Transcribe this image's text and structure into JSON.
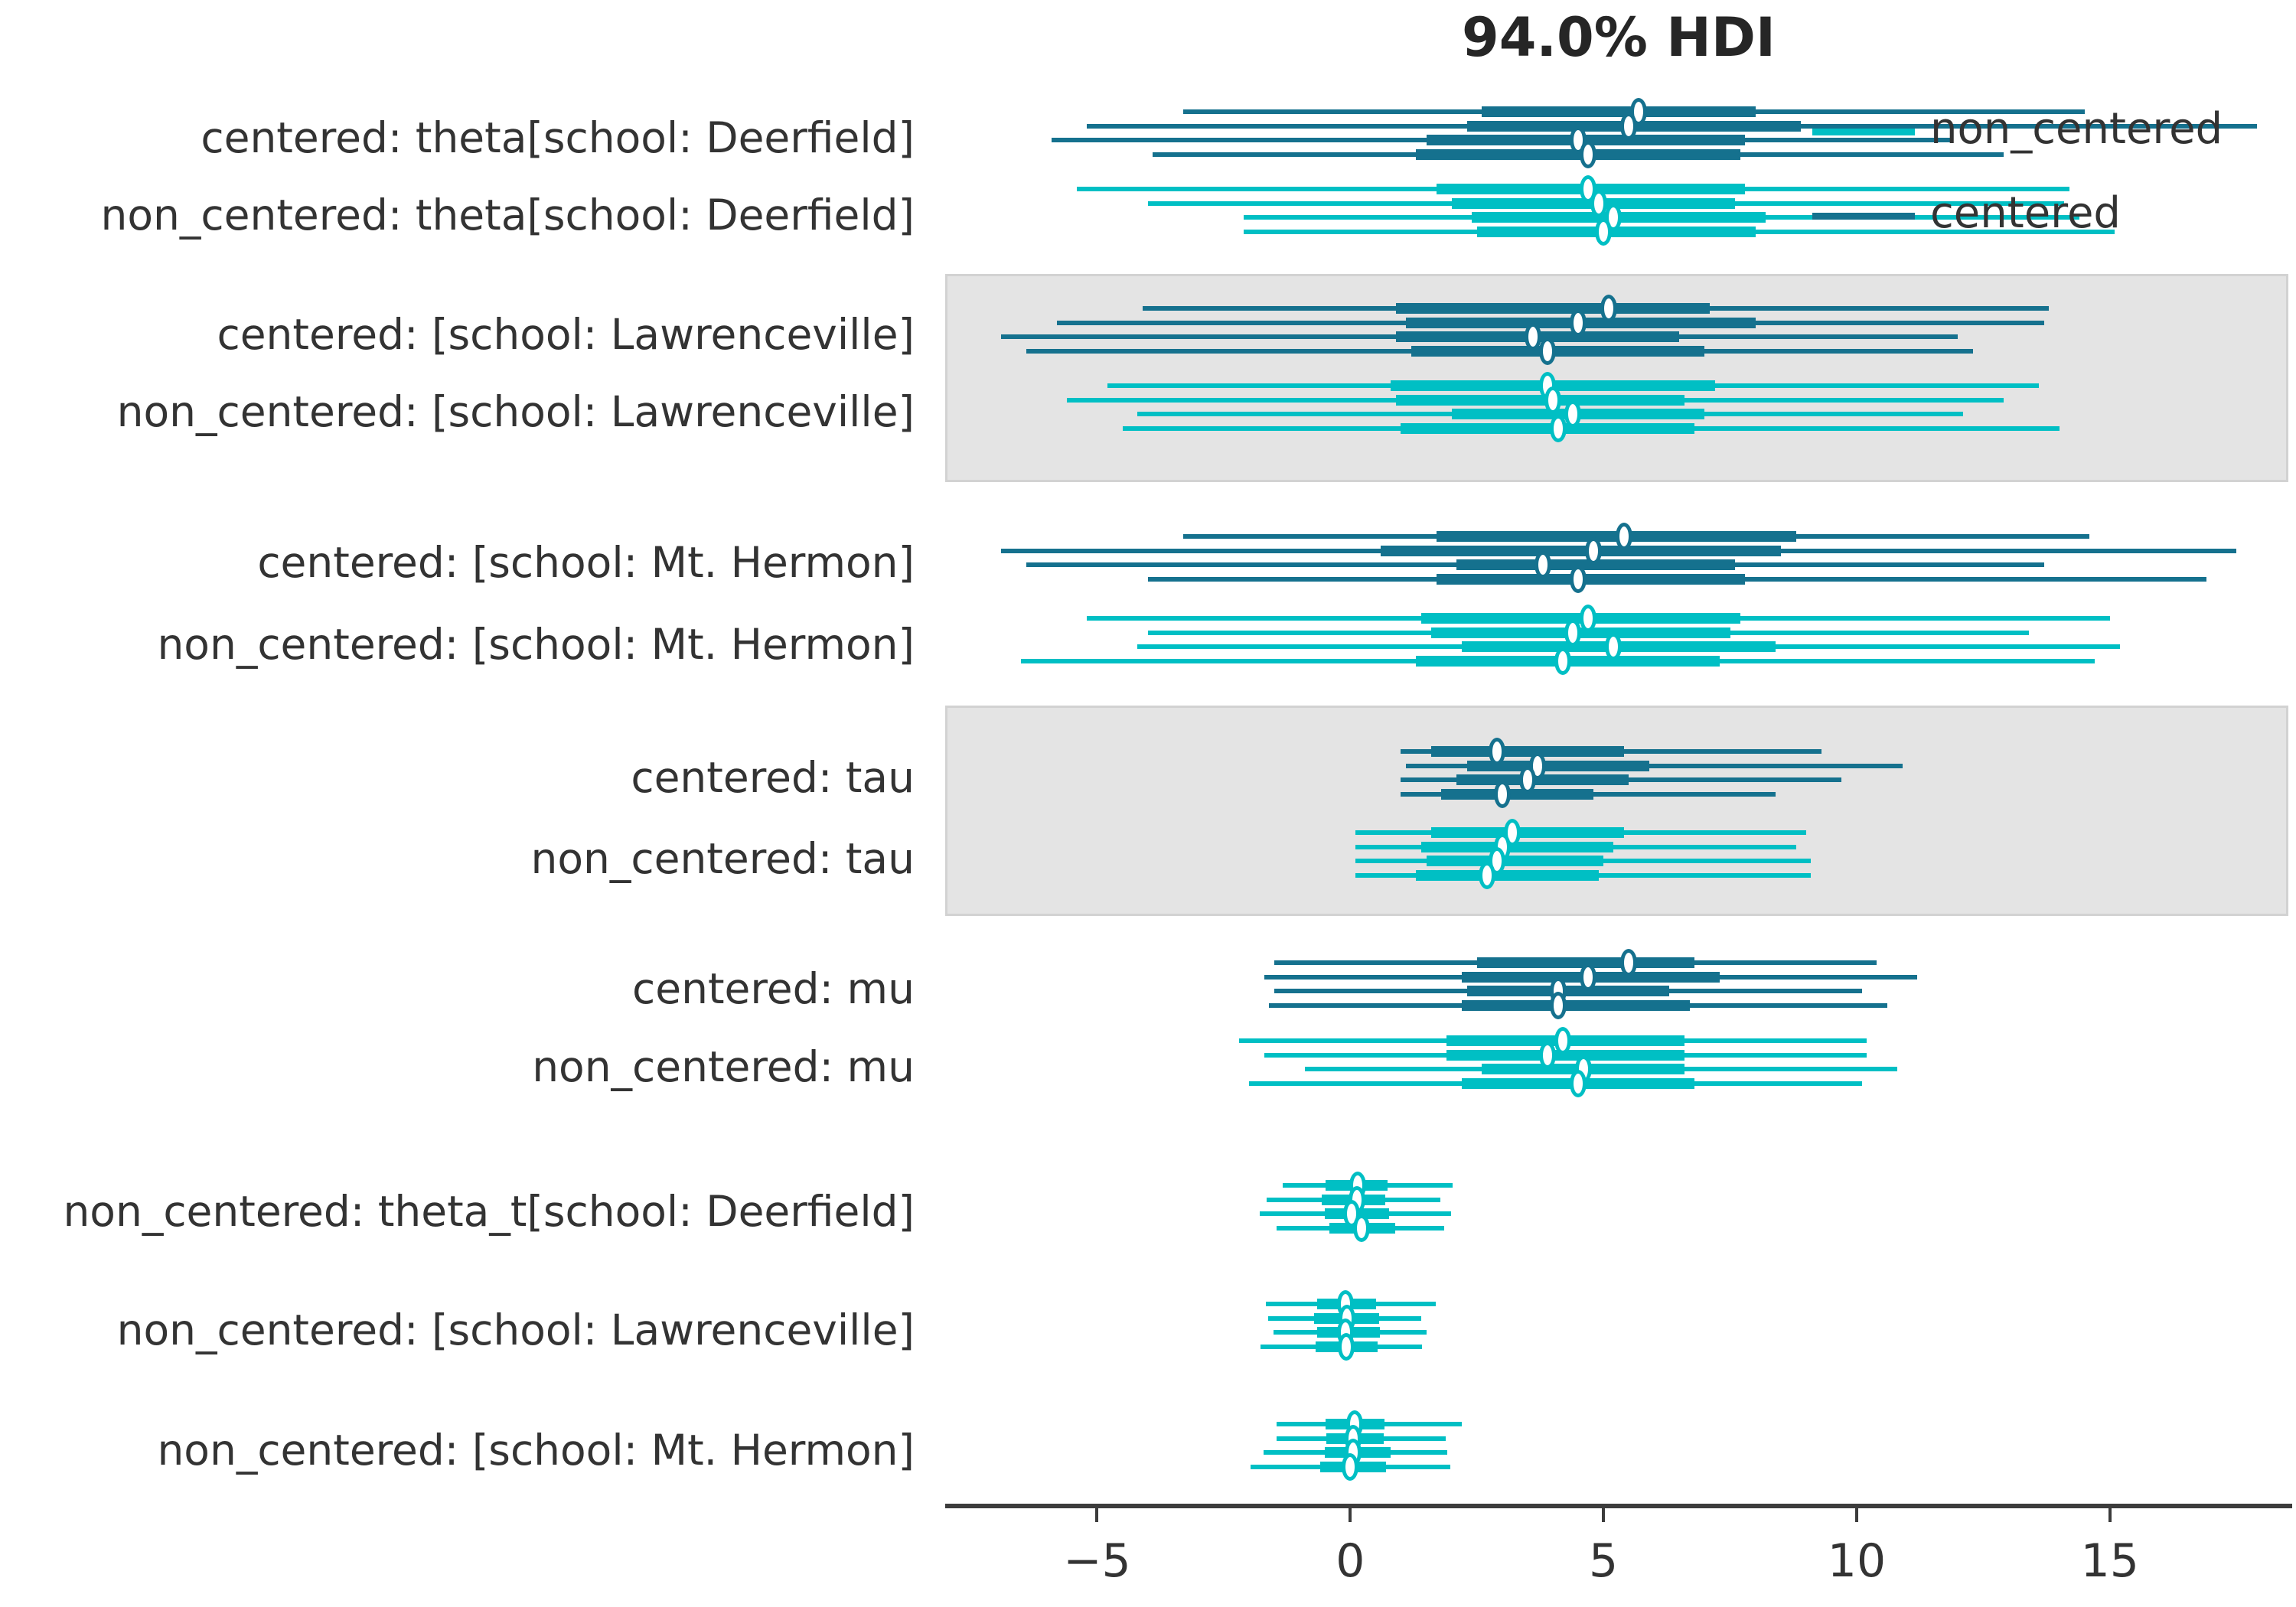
{
  "chart_data": {
    "type": "forest",
    "title": "94.0% HDI",
    "hdi_prob": "94.0%",
    "legend": [
      {
        "name": "non_centered",
        "color": "#00bfc4"
      },
      {
        "name": "centered",
        "color": "#15718e"
      }
    ],
    "colors": {
      "centered": "#15718e",
      "non_centered": "#00bfc4",
      "band": "#e4e4e4",
      "axis": "#3c3c3c",
      "text": "#333333"
    },
    "x_axis": {
      "ticks": [
        -5,
        0,
        5,
        10,
        15
      ],
      "tick_labels": [
        "−5",
        "0",
        "5",
        "10",
        "15"
      ],
      "range": [
        -8.0,
        18.6
      ],
      "grid": false
    },
    "legend_position": "upper right",
    "rows": [
      {
        "label": "centered: theta[school: Deerfield]",
        "model": "centered",
        "shaded": false,
        "chains": [
          {
            "hdi": [
              -3.3,
              14.5
            ],
            "q": [
              2.6,
              8.0
            ],
            "m": 5.7
          },
          {
            "hdi": [
              -5.2,
              17.9
            ],
            "q": [
              2.3,
              8.9
            ],
            "m": 5.5
          },
          {
            "hdi": [
              -5.9,
              11.9
            ],
            "q": [
              1.5,
              7.8
            ],
            "m": 4.5
          },
          {
            "hdi": [
              -3.9,
              12.9
            ],
            "q": [
              1.3,
              7.7
            ],
            "m": 4.7
          }
        ]
      },
      {
        "label": "non_centered: theta[school: Deerfield]",
        "model": "non_centered",
        "shaded": false,
        "chains": [
          {
            "hdi": [
              -5.4,
              14.2
            ],
            "q": [
              1.7,
              7.8
            ],
            "m": 4.7
          },
          {
            "hdi": [
              -4.0,
              14.1
            ],
            "q": [
              2.0,
              7.6
            ],
            "m": 4.9
          },
          {
            "hdi": [
              -2.1,
              14.4
            ],
            "q": [
              2.4,
              8.2
            ],
            "m": 5.2
          },
          {
            "hdi": [
              -2.1,
              15.1
            ],
            "q": [
              2.5,
              8.0
            ],
            "m": 5.0
          }
        ]
      },
      {
        "label": "centered: [school: Lawrenceville]",
        "model": "centered",
        "shaded": true,
        "chains": [
          {
            "hdi": [
              -4.1,
              13.8
            ],
            "q": [
              0.9,
              7.1
            ],
            "m": 5.1
          },
          {
            "hdi": [
              -5.8,
              13.7
            ],
            "q": [
              1.1,
              8.0
            ],
            "m": 4.5
          },
          {
            "hdi": [
              -6.9,
              12.0
            ],
            "q": [
              0.9,
              6.5
            ],
            "m": 3.6
          },
          {
            "hdi": [
              -6.4,
              12.3
            ],
            "q": [
              1.2,
              7.0
            ],
            "m": 3.9
          }
        ]
      },
      {
        "label": "non_centered: [school: Lawrenceville]",
        "model": "non_centered",
        "shaded": true,
        "chains": [
          {
            "hdi": [
              -4.8,
              13.6
            ],
            "q": [
              0.8,
              7.2
            ],
            "m": 3.9
          },
          {
            "hdi": [
              -5.6,
              12.9
            ],
            "q": [
              0.9,
              6.6
            ],
            "m": 4.0
          },
          {
            "hdi": [
              -4.2,
              12.1
            ],
            "q": [
              2.0,
              7.0
            ],
            "m": 4.4
          },
          {
            "hdi": [
              -4.5,
              14.0
            ],
            "q": [
              1.0,
              6.8
            ],
            "m": 4.1
          }
        ]
      },
      {
        "label": "centered: [school: Mt. Hermon]",
        "model": "centered",
        "shaded": false,
        "chains": [
          {
            "hdi": [
              -3.3,
              14.6
            ],
            "q": [
              1.7,
              8.8
            ],
            "m": 5.4
          },
          {
            "hdi": [
              -6.9,
              17.5
            ],
            "q": [
              0.6,
              8.5
            ],
            "m": 4.8
          },
          {
            "hdi": [
              -6.4,
              13.7
            ],
            "q": [
              2.1,
              7.6
            ],
            "m": 3.8
          },
          {
            "hdi": [
              -4.0,
              16.9
            ],
            "q": [
              1.7,
              7.8
            ],
            "m": 4.5
          }
        ]
      },
      {
        "label": "non_centered: [school: Mt. Hermon]",
        "model": "non_centered",
        "shaded": false,
        "chains": [
          {
            "hdi": [
              -5.2,
              15.0
            ],
            "q": [
              1.4,
              7.7
            ],
            "m": 4.7
          },
          {
            "hdi": [
              -4.0,
              13.4
            ],
            "q": [
              1.6,
              7.5
            ],
            "m": 4.4
          },
          {
            "hdi": [
              -4.2,
              15.2
            ],
            "q": [
              2.2,
              8.4
            ],
            "m": 5.2
          },
          {
            "hdi": [
              -6.5,
              14.7
            ],
            "q": [
              1.3,
              7.3
            ],
            "m": 4.2
          }
        ]
      },
      {
        "label": "centered: tau",
        "model": "centered",
        "shaded": true,
        "chains": [
          {
            "hdi": [
              1.0,
              9.3
            ],
            "q": [
              1.6,
              5.4
            ],
            "m": 2.9
          },
          {
            "hdi": [
              1.1,
              10.9
            ],
            "q": [
              2.3,
              5.9
            ],
            "m": 3.7
          },
          {
            "hdi": [
              1.0,
              9.7
            ],
            "q": [
              2.1,
              5.5
            ],
            "m": 3.5
          },
          {
            "hdi": [
              1.0,
              8.4
            ],
            "q": [
              1.8,
              4.8
            ],
            "m": 3.0
          }
        ]
      },
      {
        "label": "non_centered: tau",
        "model": "non_centered",
        "shaded": true,
        "chains": [
          {
            "hdi": [
              0.1,
              9.0
            ],
            "q": [
              1.6,
              5.4
            ],
            "m": 3.2
          },
          {
            "hdi": [
              0.1,
              8.8
            ],
            "q": [
              1.4,
              5.2
            ],
            "m": 3.0
          },
          {
            "hdi": [
              0.1,
              9.1
            ],
            "q": [
              1.5,
              5.0
            ],
            "m": 2.9
          },
          {
            "hdi": [
              0.1,
              9.1
            ],
            "q": [
              1.3,
              4.9
            ],
            "m": 2.7
          }
        ]
      },
      {
        "label": "centered: mu",
        "model": "centered",
        "shaded": false,
        "chains": [
          {
            "hdi": [
              -1.5,
              10.4
            ],
            "q": [
              2.5,
              6.8
            ],
            "m": 5.5
          },
          {
            "hdi": [
              -1.7,
              11.2
            ],
            "q": [
              2.2,
              7.3
            ],
            "m": 4.7
          },
          {
            "hdi": [
              -1.5,
              10.1
            ],
            "q": [
              2.3,
              6.3
            ],
            "m": 4.1
          },
          {
            "hdi": [
              -1.6,
              10.6
            ],
            "q": [
              2.2,
              6.7
            ],
            "m": 4.1
          }
        ]
      },
      {
        "label": "non_centered: mu",
        "model": "non_centered",
        "shaded": false,
        "chains": [
          {
            "hdi": [
              -2.2,
              10.2
            ],
            "q": [
              1.9,
              6.6
            ],
            "m": 4.2
          },
          {
            "hdi": [
              -1.7,
              10.2
            ],
            "q": [
              1.9,
              6.6
            ],
            "m": 3.9
          },
          {
            "hdi": [
              -0.9,
              10.8
            ],
            "q": [
              2.6,
              6.6
            ],
            "m": 4.6
          },
          {
            "hdi": [
              -2.0,
              10.1
            ],
            "q": [
              2.2,
              6.8
            ],
            "m": 4.5
          }
        ]
      },
      {
        "label": "non_centered: theta_t[school: Deerfield]",
        "model": "non_centered",
        "shaded": false,
        "chains": [
          {
            "hdi": [
              -1.33,
              2.02
            ],
            "q": [
              -0.49,
              0.74
            ],
            "m": 0.15
          },
          {
            "hdi": [
              -1.65,
              1.78
            ],
            "q": [
              -0.57,
              0.69
            ],
            "m": 0.13
          },
          {
            "hdi": [
              -1.79,
              1.99
            ],
            "q": [
              -0.51,
              0.77
            ],
            "m": 0.03
          },
          {
            "hdi": [
              -1.45,
              1.86
            ],
            "q": [
              -0.42,
              0.89
            ],
            "m": 0.22
          }
        ]
      },
      {
        "label": "non_centered: [school: Lawrenceville]",
        "model": "non_centered",
        "shaded": false,
        "chains": [
          {
            "hdi": [
              -1.67,
              1.69
            ],
            "q": [
              -0.65,
              0.51
            ],
            "m": -0.09
          },
          {
            "hdi": [
              -1.62,
              1.4
            ],
            "q": [
              -0.71,
              0.57
            ],
            "m": -0.06
          },
          {
            "hdi": [
              -1.51,
              1.51
            ],
            "q": [
              -0.66,
              0.58
            ],
            "m": -0.1
          },
          {
            "hdi": [
              -1.78,
              1.41
            ],
            "q": [
              -0.68,
              0.54
            ],
            "m": -0.08
          }
        ]
      },
      {
        "label": "non_centered: [school: Mt. Hermon]",
        "model": "non_centered",
        "shaded": false,
        "chains": [
          {
            "hdi": [
              -1.45,
              2.2
            ],
            "q": [
              -0.49,
              0.67
            ],
            "m": 0.08
          },
          {
            "hdi": [
              -1.45,
              1.88
            ],
            "q": [
              -0.47,
              0.66
            ],
            "m": 0.06
          },
          {
            "hdi": [
              -1.72,
              1.91
            ],
            "q": [
              -0.5,
              0.8
            ],
            "m": 0.06
          },
          {
            "hdi": [
              -1.97,
              1.98
            ],
            "q": [
              -0.59,
              0.71
            ],
            "m": 0.0
          }
        ]
      }
    ]
  }
}
